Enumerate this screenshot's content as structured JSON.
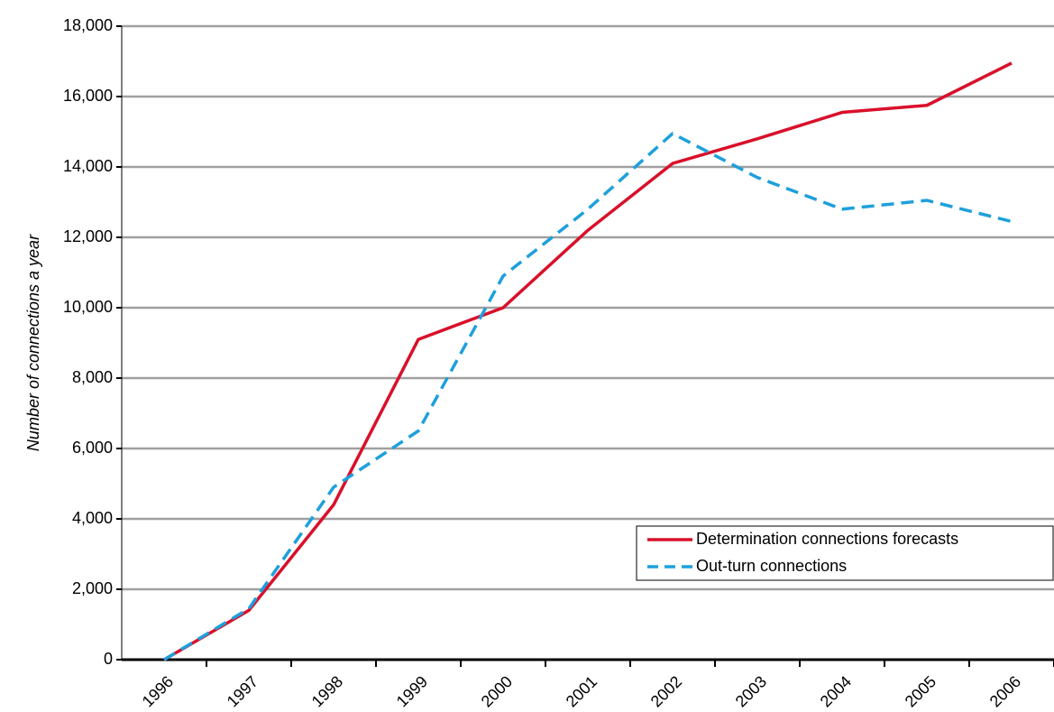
{
  "chart_data": {
    "type": "line",
    "y_label": "Number of connections a year",
    "categories": [
      "1996",
      "1997",
      "1998",
      "1999",
      "2000",
      "2001",
      "2002",
      "2003",
      "2004",
      "2005",
      "2006"
    ],
    "series": [
      {
        "name": "Determination connections forecasts",
        "color": "#d9102a",
        "dash": "solid",
        "values": [
          0,
          1400,
          4400,
          9100,
          10000,
          12200,
          14100,
          14800,
          15550,
          15750,
          16950
        ]
      },
      {
        "name": "Out-turn connections",
        "color": "#1ea0dc",
        "dash": "dashed",
        "values": [
          0,
          1450,
          4900,
          6500,
          10900,
          12800,
          14950,
          13700,
          12800,
          13050,
          12450
        ]
      }
    ],
    "ylim": [
      0,
      18000
    ],
    "yticks": [
      0,
      {
        "value": 2000,
        "label": "2,000"
      },
      {
        "value": 4000,
        "label": "4,000"
      },
      {
        "value": 6000,
        "label": "6,000"
      },
      {
        "value": 8000,
        "label": "8,000"
      },
      {
        "value": 10000,
        "label": "10,000"
      },
      {
        "value": 12000,
        "label": "12,000"
      },
      {
        "value": 14000,
        "label": "14,000"
      },
      {
        "value": 16000,
        "label": "16,000"
      },
      {
        "value": 18000,
        "label": "18,000"
      }
    ],
    "grid": true,
    "legend": "lower right"
  }
}
